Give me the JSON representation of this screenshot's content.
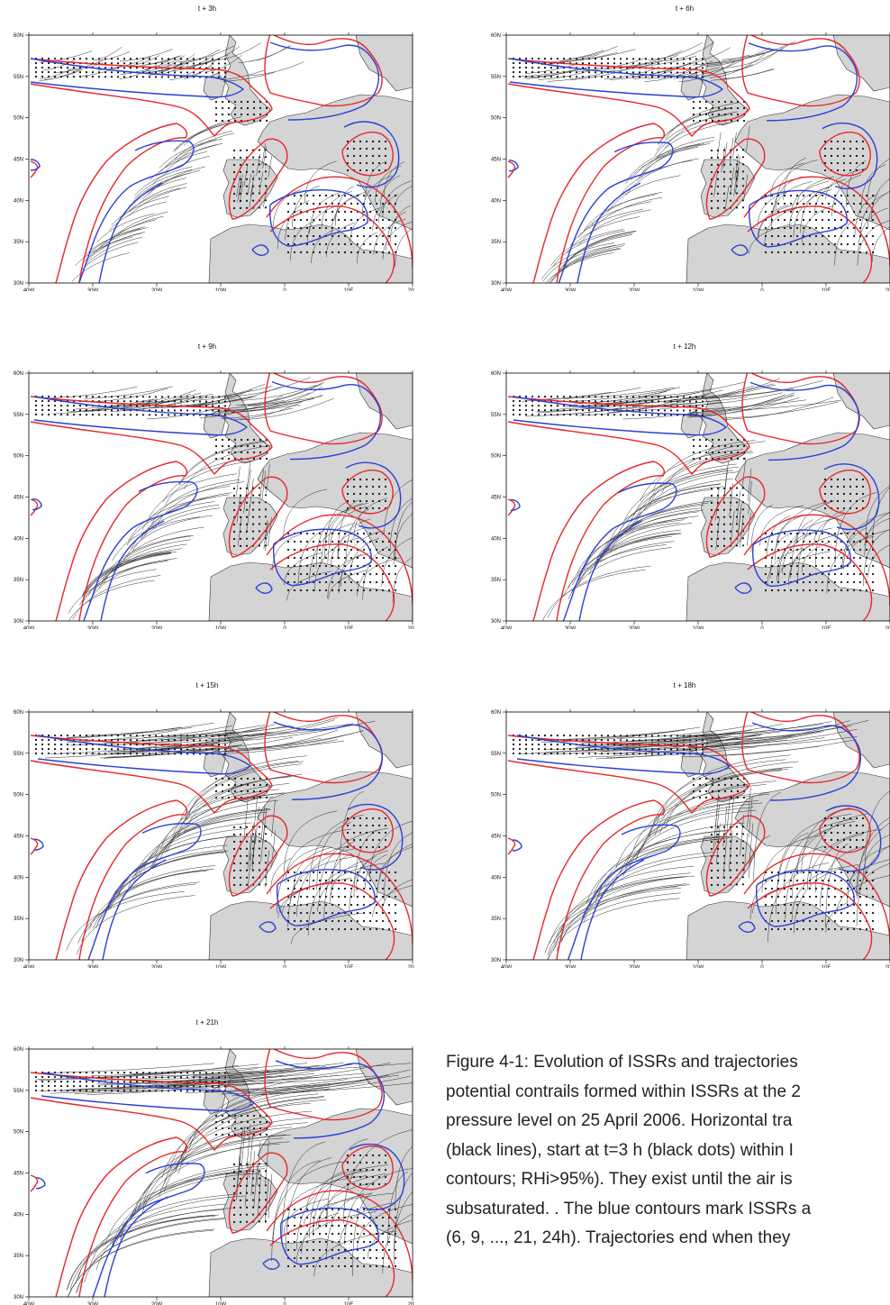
{
  "figure": {
    "panels": [
      {
        "title": "t + 3h"
      },
      {
        "title": "t + 6h"
      },
      {
        "title": "t + 9h"
      },
      {
        "title": "t + 12h"
      },
      {
        "title": "t + 15h"
      },
      {
        "title": "t + 18h"
      },
      {
        "title": "t + 21h"
      }
    ],
    "lat_labels": [
      "60N",
      "55N",
      "50N",
      "45N",
      "40N",
      "35N",
      "30N"
    ],
    "lon_labels": [
      "40W",
      "30W",
      "20W",
      "10W",
      "0",
      "10E",
      "20E"
    ],
    "legend_colors": {
      "rhi_contour": "#e8262a",
      "issr_contour": "#2b3fd6",
      "trajectory": "#111111",
      "land": "#d4d4d4"
    }
  },
  "caption": {
    "lines": [
      "Figure 4-1: Evolution of ISSRs and trajectories",
      "potential contrails formed within ISSRs at the 2",
      "pressure level on 25 April 2006. Horizontal tra",
      "(black lines), start at t=3 h (black dots) within I",
      "contours; RHi>95%). They exist until the air is",
      "subsaturated. . The blue contours mark ISSRs a",
      "(6, 9, ..., 21, 24h). Trajectories end when they"
    ]
  }
}
